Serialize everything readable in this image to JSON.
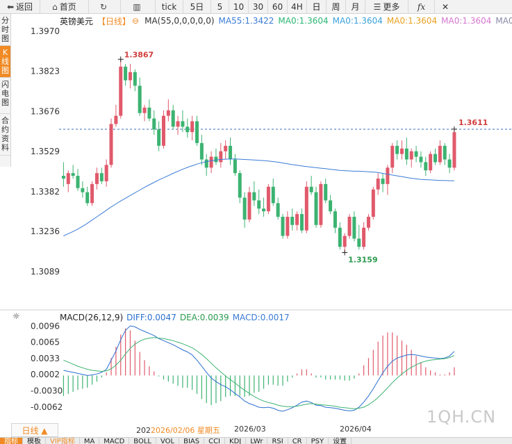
{
  "toolbar": {
    "back": "返回",
    "home": "首页",
    "tick": "tick",
    "periods": [
      "5日",
      "5",
      "10",
      "30",
      "60",
      "4H",
      "日",
      "周",
      "月"
    ],
    "more": "更多",
    "fx": "fx"
  },
  "side_tabs": [
    {
      "label": "分时图",
      "active": false
    },
    {
      "label": "K线图",
      "active": true
    },
    {
      "label": "闪电图",
      "active": false
    },
    {
      "label": "合约资料",
      "active": false
    }
  ],
  "legend": {
    "symbol": "英镑美元",
    "period": "【日线】",
    "ma_params": "MA(55,0,0,0,0,0)",
    "ma_values": [
      {
        "label": "MA55:1.3422",
        "color": "#3a7bd5"
      },
      {
        "label": "MA0:1.3604",
        "color": "#2bb673"
      },
      {
        "label": "MA0:1.3604",
        "color": "#3aa0d8"
      },
      {
        "label": "MA0:1.3604",
        "color": "#e8a020"
      },
      {
        "label": "MA0:1.3604",
        "color": "#d478d0"
      },
      {
        "label": "MA0:1.3604",
        "color": "#8a8aa8"
      }
    ]
  },
  "macd_legend": {
    "title": "MACD(26,12,9)",
    "diff": "DIFF:0.0047",
    "dea": "DEA:0.0039",
    "macd": "MACD:0.0017"
  },
  "price_axis_labels": [
    "1.3970",
    "1.3823",
    "1.3676",
    "1.3529",
    "1.3382",
    "1.3236",
    "1.3089"
  ],
  "macd_axis_labels": [
    "0.0096",
    "0.0065",
    "0.0033",
    "0.0002",
    "-0.0030",
    "-0.0062"
  ],
  "annotations": {
    "high": "1.3867",
    "low": "1.3159",
    "last": "1.3611"
  },
  "bottom": {
    "period_button": "日线 ▲",
    "date_labels": [
      "202",
      "2026/02/06 星期五",
      "2026/03",
      "2026/04"
    ],
    "indicator_tabs": [
      "指标",
      "模板",
      "VIP指标",
      "MA",
      "MACD",
      "BOLL",
      "VOL",
      "BIAS",
      "CCI",
      "KDJ",
      "LWr",
      "RSI",
      "CR",
      "PSY",
      "设置"
    ],
    "watermark": "1QH.CN"
  },
  "colors": {
    "up": "#e05a6b",
    "down": "#3cb371",
    "ma55": "#3a7bd5",
    "diff": "#2a6fd0",
    "dea": "#3cb371",
    "label": "#d23c3c",
    "low_label": "#2a9a4e"
  },
  "chart_data": {
    "type": "candlestick",
    "ylim": [
      1.301,
      1.3995
    ],
    "ohlc": [
      [
        1.344,
        1.349,
        1.34,
        1.343
      ],
      [
        1.341,
        1.346,
        1.338,
        1.345
      ],
      [
        1.345,
        1.348,
        1.343,
        1.344
      ],
      [
        1.344,
        1.3465,
        1.3385,
        1.3395
      ],
      [
        1.3395,
        1.342,
        1.336,
        1.338
      ],
      [
        1.338,
        1.34,
        1.333,
        1.334
      ],
      [
        1.334,
        1.342,
        1.333,
        1.341
      ],
      [
        1.341,
        1.347,
        1.339,
        1.345
      ],
      [
        1.345,
        1.347,
        1.341,
        1.342
      ],
      [
        1.342,
        1.35,
        1.34,
        1.348
      ],
      [
        1.348,
        1.365,
        1.347,
        1.363
      ],
      [
        1.363,
        1.37,
        1.362,
        1.366
      ],
      [
        1.366,
        1.3867,
        1.365,
        1.384
      ],
      [
        1.384,
        1.385,
        1.377,
        1.379
      ],
      [
        1.379,
        1.385,
        1.376,
        1.382
      ],
      [
        1.382,
        1.383,
        1.375,
        1.377
      ],
      [
        1.377,
        1.38,
        1.366,
        1.367
      ],
      [
        1.367,
        1.37,
        1.364,
        1.369
      ],
      [
        1.369,
        1.372,
        1.364,
        1.365
      ],
      [
        1.365,
        1.368,
        1.359,
        1.361
      ],
      [
        1.361,
        1.364,
        1.353,
        1.355
      ],
      [
        1.355,
        1.368,
        1.354,
        1.366
      ],
      [
        1.366,
        1.372,
        1.364,
        1.368
      ],
      [
        1.368,
        1.37,
        1.361,
        1.362
      ],
      [
        1.362,
        1.366,
        1.359,
        1.364
      ],
      [
        1.364,
        1.368,
        1.36,
        1.362
      ],
      [
        1.362,
        1.365,
        1.358,
        1.36
      ],
      [
        1.36,
        1.366,
        1.357,
        1.364
      ],
      [
        1.364,
        1.366,
        1.355,
        1.356
      ],
      [
        1.356,
        1.359,
        1.348,
        1.35
      ],
      [
        1.35,
        1.352,
        1.344,
        1.347
      ],
      [
        1.347,
        1.353,
        1.345,
        1.351
      ],
      [
        1.351,
        1.354,
        1.348,
        1.349
      ],
      [
        1.349,
        1.356,
        1.347,
        1.353
      ],
      [
        1.353,
        1.357,
        1.35,
        1.355
      ],
      [
        1.355,
        1.358,
        1.348,
        1.35
      ],
      [
        1.35,
        1.352,
        1.344,
        1.345
      ],
      [
        1.345,
        1.346,
        1.334,
        1.336
      ],
      [
        1.336,
        1.338,
        1.325,
        1.328
      ],
      [
        1.328,
        1.34,
        1.327,
        1.338
      ],
      [
        1.338,
        1.342,
        1.333,
        1.335
      ],
      [
        1.335,
        1.339,
        1.33,
        1.332
      ],
      [
        1.332,
        1.336,
        1.329,
        1.331
      ],
      [
        1.331,
        1.341,
        1.33,
        1.34
      ],
      [
        1.34,
        1.343,
        1.333,
        1.334
      ],
      [
        1.334,
        1.336,
        1.328,
        1.329
      ],
      [
        1.329,
        1.33,
        1.321,
        1.322
      ],
      [
        1.322,
        1.331,
        1.321,
        1.329
      ],
      [
        1.329,
        1.332,
        1.324,
        1.326
      ],
      [
        1.326,
        1.331,
        1.324,
        1.33
      ],
      [
        1.33,
        1.332,
        1.323,
        1.324
      ],
      [
        1.324,
        1.342,
        1.323,
        1.34
      ],
      [
        1.34,
        1.344,
        1.337,
        1.338
      ],
      [
        1.338,
        1.34,
        1.325,
        1.326
      ],
      [
        1.326,
        1.342,
        1.325,
        1.341
      ],
      [
        1.341,
        1.343,
        1.334,
        1.335
      ],
      [
        1.335,
        1.337,
        1.33,
        1.331
      ],
      [
        1.331,
        1.332,
        1.323,
        1.325
      ],
      [
        1.325,
        1.327,
        1.317,
        1.318
      ],
      [
        1.318,
        1.323,
        1.3159,
        1.322
      ],
      [
        1.322,
        1.33,
        1.321,
        1.329
      ],
      [
        1.329,
        1.331,
        1.32,
        1.321
      ],
      [
        1.321,
        1.326,
        1.317,
        1.318
      ],
      [
        1.318,
        1.327,
        1.317,
        1.325
      ],
      [
        1.325,
        1.33,
        1.324,
        1.329
      ],
      [
        1.329,
        1.34,
        1.328,
        1.339
      ],
      [
        1.339,
        1.345,
        1.337,
        1.343
      ],
      [
        1.343,
        1.345,
        1.338,
        1.341
      ],
      [
        1.341,
        1.348,
        1.337,
        1.347
      ],
      [
        1.347,
        1.356,
        1.345,
        1.355
      ],
      [
        1.355,
        1.357,
        1.35,
        1.352
      ],
      [
        1.352,
        1.357,
        1.35,
        1.354
      ],
      [
        1.354,
        1.358,
        1.348,
        1.35
      ],
      [
        1.35,
        1.354,
        1.347,
        1.353
      ],
      [
        1.353,
        1.355,
        1.349,
        1.351
      ],
      [
        1.351,
        1.353,
        1.347,
        1.349
      ],
      [
        1.349,
        1.351,
        1.344,
        1.346
      ],
      [
        1.346,
        1.353,
        1.345,
        1.352
      ],
      [
        1.352,
        1.354,
        1.348,
        1.349
      ],
      [
        1.349,
        1.357,
        1.348,
        1.355
      ],
      [
        1.355,
        1.356,
        1.348,
        1.35
      ],
      [
        1.35,
        1.352,
        1.345,
        1.347
      ],
      [
        1.347,
        1.3611,
        1.346,
        1.36
      ]
    ],
    "ma55": [
      1.322,
      1.3228,
      1.3236,
      1.3245,
      1.3255,
      1.3266,
      1.3278,
      1.329,
      1.3302,
      1.3314,
      1.3326,
      1.3337,
      1.3348,
      1.3358,
      1.3368,
      1.3378,
      1.3388,
      1.3398,
      1.3407,
      1.3416,
      1.3425,
      1.3433,
      1.3441,
      1.3449,
      1.3457,
      1.3464,
      1.3471,
      1.3477,
      1.3483,
      1.3488,
      1.3492,
      1.3495,
      1.3498,
      1.35,
      1.3501,
      1.3502,
      1.3502,
      1.3501,
      1.35,
      1.3499,
      1.3498,
      1.3497,
      1.3496,
      1.3494,
      1.3492,
      1.349,
      1.3487,
      1.3484,
      1.3481,
      1.3479,
      1.3476,
      1.3474,
      1.3472,
      1.347,
      1.3468,
      1.3466,
      1.3464,
      1.3462,
      1.346,
      1.3459,
      1.3458,
      1.3457,
      1.3457,
      1.3456,
      1.3455,
      1.3454,
      1.3452,
      1.3449,
      1.3446,
      1.3443,
      1.344,
      1.3437,
      1.3434,
      1.3431,
      1.3429,
      1.3427,
      1.3426,
      1.3425,
      1.3424,
      1.3423,
      1.3423,
      1.3422,
      1.3422
    ],
    "high_idx": 12,
    "low_idx": 59,
    "last_value": 1.3611,
    "macd_ylim": [
      -0.0085,
      0.0105
    ],
    "diff": [
      0.001,
      0.0008,
      0.0006,
      0.0004,
      0.0002,
      0.0,
      0.0001,
      0.0003,
      0.0006,
      0.0012,
      0.003,
      0.0048,
      0.007,
      0.0088,
      0.0097,
      0.0095,
      0.009,
      0.0086,
      0.0082,
      0.0078,
      0.0072,
      0.0068,
      0.0064,
      0.006,
      0.0055,
      0.005,
      0.0046,
      0.004,
      0.003,
      0.0018,
      0.0006,
      -0.0005,
      -0.0012,
      -0.0018,
      -0.0022,
      -0.0028,
      -0.0035,
      -0.0042,
      -0.005,
      -0.0055,
      -0.0058,
      -0.0062,
      -0.0063,
      -0.0062,
      -0.0064,
      -0.0068,
      -0.007,
      -0.0067,
      -0.0063,
      -0.0058,
      -0.0052,
      -0.005,
      -0.0053,
      -0.0058,
      -0.0059,
      -0.0062,
      -0.0063,
      -0.0064,
      -0.0066,
      -0.0068,
      -0.0069,
      -0.0068,
      -0.0062,
      -0.0052,
      -0.004,
      -0.0026,
      -0.001,
      0.0005,
      0.0018,
      0.0028,
      0.0034,
      0.0037,
      0.004,
      0.0041,
      0.004,
      0.0038,
      0.0036,
      0.0035,
      0.0034,
      0.0033,
      0.0034,
      0.0038,
      0.0047
    ],
    "dea": [
      0.003,
      0.0026,
      0.0022,
      0.0018,
      0.0015,
      0.0012,
      0.001,
      0.0009,
      0.0008,
      0.0009,
      0.0013,
      0.002,
      0.003,
      0.0042,
      0.0053,
      0.0061,
      0.0067,
      0.0071,
      0.0073,
      0.0074,
      0.0073,
      0.0072,
      0.007,
      0.0068,
      0.0065,
      0.0062,
      0.0058,
      0.0054,
      0.0048,
      0.0041,
      0.0033,
      0.0024,
      0.0015,
      0.0007,
      -0.0001,
      -0.0008,
      -0.0015,
      -0.0022,
      -0.0029,
      -0.0035,
      -0.0041,
      -0.0046,
      -0.005,
      -0.0053,
      -0.0055,
      -0.0058,
      -0.006,
      -0.0061,
      -0.0061,
      -0.006,
      -0.0058,
      -0.0056,
      -0.0055,
      -0.0056,
      -0.0057,
      -0.0058,
      -0.0059,
      -0.006,
      -0.0062,
      -0.0063,
      -0.0064,
      -0.0065,
      -0.0064,
      -0.0062,
      -0.0057,
      -0.0051,
      -0.0043,
      -0.0034,
      -0.0024,
      -0.0014,
      -0.0005,
      0.0003,
      0.001,
      0.0016,
      0.0021,
      0.0025,
      0.0028,
      0.003,
      0.0031,
      0.0032,
      0.0033,
      0.0035,
      0.0039
    ]
  }
}
